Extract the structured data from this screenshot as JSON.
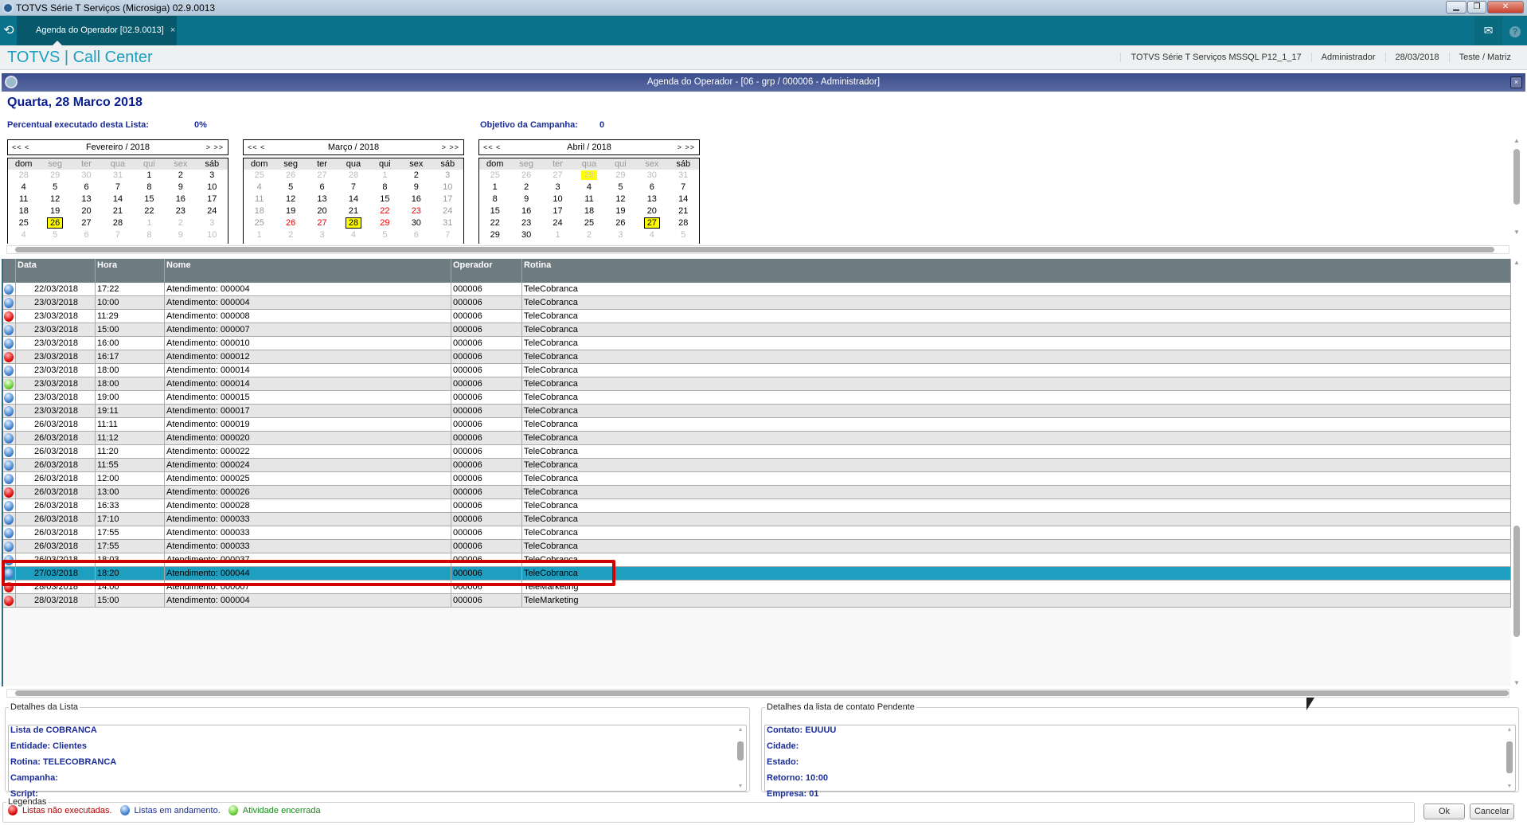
{
  "window": {
    "title": "TOTVS Série T Serviços (Microsiga) 02.9.0013"
  },
  "tabbar": {
    "tab_label": "Agenda do Operador [02.9.0013]",
    "tab_close": "×"
  },
  "appbar": {
    "brand": "TOTVS | Call Center",
    "environment": "TOTVS Série T Serviços MSSQL P12_1_17",
    "user": "Administrador",
    "date": "28/03/2018",
    "company": "Teste / Matriz"
  },
  "dialog": {
    "title": "Agenda do Operador - [06 - grp / 000006 - Administrador]",
    "close": "×"
  },
  "summary": {
    "date_title": "Quarta, 28 Marco 2018",
    "percent_label": "Percentual executado desta Lista:",
    "percent_value": "0%",
    "objective_label": "Objetivo da Campanha:",
    "objective_value": "0"
  },
  "calendars": [
    {
      "title": "Fevereiro / 2018",
      "nav": [
        "<<",
        "<",
        ">",
        ">>"
      ],
      "weekdays": [
        "dom",
        "seg",
        "ter",
        "qua",
        "qui",
        "sex",
        "sáb"
      ],
      "weekday_styles": "ngggggn",
      "weeks": [
        [
          "28",
          "29",
          "30",
          "31",
          "1",
          "2",
          "3"
        ],
        [
          "4",
          "5",
          "6",
          "7",
          "8",
          "9",
          "10"
        ],
        [
          "11",
          "12",
          "13",
          "14",
          "15",
          "16",
          "17"
        ],
        [
          "18",
          "19",
          "20",
          "21",
          "22",
          "23",
          "24"
        ],
        [
          "25",
          "26",
          "27",
          "28",
          "1",
          "2",
          "3"
        ],
        [
          "4",
          "5",
          "6",
          "7",
          "8",
          "9",
          "10"
        ]
      ],
      "styles": [
        "oooonnn",
        "nnnnnnn",
        "nnnnnnn",
        "nnnnnnn",
        "nsnnooo",
        "ooooooo"
      ]
    },
    {
      "title": "Março / 2018",
      "nav": [
        "<<",
        "<",
        ">",
        ">>"
      ],
      "weekdays": [
        "dom",
        "seg",
        "ter",
        "qua",
        "qui",
        "sex",
        "sáb"
      ],
      "weekday_styles": "nnnnnnn",
      "weeks": [
        [
          "25",
          "26",
          "27",
          "28",
          "1",
          "2",
          "3"
        ],
        [
          "4",
          "5",
          "6",
          "7",
          "8",
          "9",
          "10"
        ],
        [
          "11",
          "12",
          "13",
          "14",
          "15",
          "16",
          "17"
        ],
        [
          "18",
          "19",
          "20",
          "21",
          "22",
          "23",
          "24"
        ],
        [
          "25",
          "26",
          "27",
          "28",
          "29",
          "30",
          "31"
        ],
        [
          "1",
          "2",
          "3",
          "4",
          "5",
          "6",
          "7"
        ]
      ],
      "styles": [
        "ooooonw",
        "wnnnnnw",
        "wnnnnnw",
        "wnnnrrw",
        "wrrsrnw",
        "ooooooo"
      ]
    },
    {
      "title": "Abril / 2018",
      "nav": [
        "<<",
        "<",
        ">",
        ">>"
      ],
      "weekdays": [
        "dom",
        "seg",
        "ter",
        "qua",
        "qui",
        "sex",
        "sáb"
      ],
      "weekday_styles": "ngggggn",
      "weeks": [
        [
          "25",
          "26",
          "27",
          "28",
          "29",
          "30",
          "31"
        ],
        [
          "1",
          "2",
          "3",
          "4",
          "5",
          "6",
          "7"
        ],
        [
          "8",
          "9",
          "10",
          "11",
          "12",
          "13",
          "14"
        ],
        [
          "15",
          "16",
          "17",
          "18",
          "19",
          "20",
          "21"
        ],
        [
          "22",
          "23",
          "24",
          "25",
          "26",
          "27",
          "28"
        ],
        [
          "29",
          "30",
          "1",
          "2",
          "3",
          "4",
          "5"
        ]
      ],
      "styles": [
        "oooyooo",
        "nnnnnnn",
        "nnnnnnn",
        "nnnnnnn",
        "nnnnnsn",
        "nnooooo"
      ]
    }
  ],
  "table": {
    "columns": [
      "",
      "Data",
      "Hora",
      "Nome",
      "Operador",
      "Rotina"
    ],
    "selected_index": 21,
    "rows": [
      {
        "status": "blue",
        "data": "22/03/2018",
        "hora": "17:22",
        "nome": "Atendimento: 000004",
        "operador": "000006",
        "rotina": "TeleCobranca"
      },
      {
        "status": "blue",
        "data": "23/03/2018",
        "hora": "10:00",
        "nome": "Atendimento: 000004",
        "operador": "000006",
        "rotina": "TeleCobranca"
      },
      {
        "status": "red",
        "data": "23/03/2018",
        "hora": "11:29",
        "nome": "Atendimento: 000008",
        "operador": "000006",
        "rotina": "TeleCobranca"
      },
      {
        "status": "blue",
        "data": "23/03/2018",
        "hora": "15:00",
        "nome": "Atendimento: 000007",
        "operador": "000006",
        "rotina": "TeleCobranca"
      },
      {
        "status": "blue",
        "data": "23/03/2018",
        "hora": "16:00",
        "nome": "Atendimento: 000010",
        "operador": "000006",
        "rotina": "TeleCobranca"
      },
      {
        "status": "red",
        "data": "23/03/2018",
        "hora": "16:17",
        "nome": "Atendimento: 000012",
        "operador": "000006",
        "rotina": "TeleCobranca"
      },
      {
        "status": "blue",
        "data": "23/03/2018",
        "hora": "18:00",
        "nome": "Atendimento: 000014",
        "operador": "000006",
        "rotina": "TeleCobranca"
      },
      {
        "status": "green",
        "data": "23/03/2018",
        "hora": "18:00",
        "nome": "Atendimento: 000014",
        "operador": "000006",
        "rotina": "TeleCobranca"
      },
      {
        "status": "blue",
        "data": "23/03/2018",
        "hora": "19:00",
        "nome": "Atendimento: 000015",
        "operador": "000006",
        "rotina": "TeleCobranca"
      },
      {
        "status": "blue",
        "data": "23/03/2018",
        "hora": "19:11",
        "nome": "Atendimento: 000017",
        "operador": "000006",
        "rotina": "TeleCobranca"
      },
      {
        "status": "blue",
        "data": "26/03/2018",
        "hora": "11:11",
        "nome": "Atendimento: 000019",
        "operador": "000006",
        "rotina": "TeleCobranca"
      },
      {
        "status": "blue",
        "data": "26/03/2018",
        "hora": "11:12",
        "nome": "Atendimento: 000020",
        "operador": "000006",
        "rotina": "TeleCobranca"
      },
      {
        "status": "blue",
        "data": "26/03/2018",
        "hora": "11:20",
        "nome": "Atendimento: 000022",
        "operador": "000006",
        "rotina": "TeleCobranca"
      },
      {
        "status": "blue",
        "data": "26/03/2018",
        "hora": "11:55",
        "nome": "Atendimento: 000024",
        "operador": "000006",
        "rotina": "TeleCobranca"
      },
      {
        "status": "blue",
        "data": "26/03/2018",
        "hora": "12:00",
        "nome": "Atendimento: 000025",
        "operador": "000006",
        "rotina": "TeleCobranca"
      },
      {
        "status": "red",
        "data": "26/03/2018",
        "hora": "13:00",
        "nome": "Atendimento: 000026",
        "operador": "000006",
        "rotina": "TeleCobranca"
      },
      {
        "status": "blue",
        "data": "26/03/2018",
        "hora": "16:33",
        "nome": "Atendimento: 000028",
        "operador": "000006",
        "rotina": "TeleCobranca"
      },
      {
        "status": "blue",
        "data": "26/03/2018",
        "hora": "17:10",
        "nome": "Atendimento: 000033",
        "operador": "000006",
        "rotina": "TeleCobranca"
      },
      {
        "status": "blue",
        "data": "26/03/2018",
        "hora": "17:55",
        "nome": "Atendimento: 000033",
        "operador": "000006",
        "rotina": "TeleCobranca"
      },
      {
        "status": "blue",
        "data": "26/03/2018",
        "hora": "17:55",
        "nome": "Atendimento: 000033",
        "operador": "000006",
        "rotina": "TeleCobranca"
      },
      {
        "status": "blue",
        "data": "26/03/2018",
        "hora": "18:03",
        "nome": "Atendimento: 000037",
        "operador": "000006",
        "rotina": "TeleCobranca"
      },
      {
        "status": "blue",
        "data": "27/03/2018",
        "hora": "18:20",
        "nome": "Atendimento: 000044",
        "operador": "000006",
        "rotina": "TeleCobranca"
      },
      {
        "status": "red",
        "data": "28/03/2018",
        "hora": "14:00",
        "nome": "Atendimento: 000007",
        "operador": "000006",
        "rotina": "TeleMarketing"
      },
      {
        "status": "red",
        "data": "28/03/2018",
        "hora": "15:00",
        "nome": "Atendimento: 000004",
        "operador": "000006",
        "rotina": "TeleMarketing"
      }
    ]
  },
  "details_list": {
    "title": "Detalhes da Lista",
    "lines": [
      "Lista de COBRANCA",
      "Entidade: Clientes",
      "Rotina: TELECOBRANCA",
      "Campanha:",
      "Script:"
    ]
  },
  "details_contact": {
    "title": "Detalhes da lista de contato Pendente",
    "lines": [
      "Contato: EUUUU",
      "Cidade:",
      "Estado:",
      "Retorno: 10:00",
      "Empresa: 01"
    ]
  },
  "legend": {
    "title": "Legendas",
    "items": [
      {
        "label": "Listas não executadas.",
        "status": "red",
        "color": "#b00000"
      },
      {
        "label": "Listas em andamento.",
        "status": "blue",
        "color": "#1b2c99"
      },
      {
        "label": "Atividade encerrada",
        "status": "green",
        "color": "#1a8a1a"
      }
    ]
  },
  "buttons": {
    "ok": "Ok",
    "cancel": "Cancelar"
  },
  "colors": {
    "tabbar": "#0b728b",
    "dialog_title": "#3a4c8a",
    "selected_row": "#1e9fc0",
    "highlight_box": "#d40000",
    "label_text": "#1b2c99"
  }
}
